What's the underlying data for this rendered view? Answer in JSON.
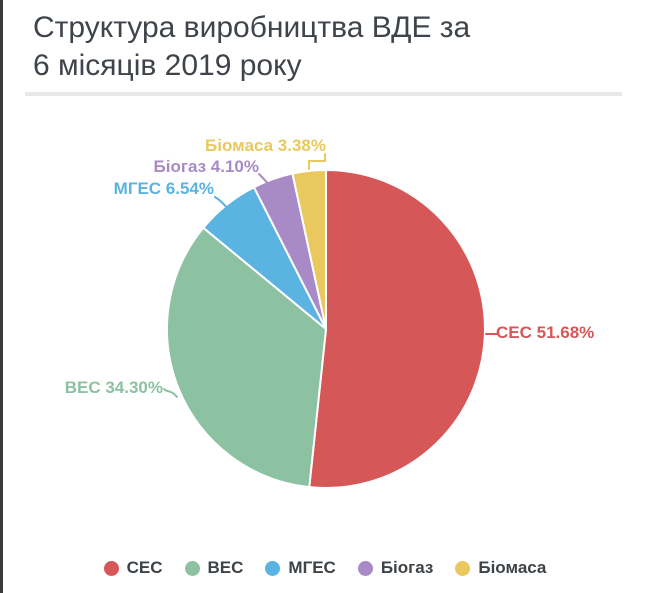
{
  "page": {
    "title": "Структура виробництва ВДЕ за 6 місяців 2019 року",
    "title_lines": [
      "Структура виробництва ВДЕ за",
      "6 місяців 2019 року"
    ]
  },
  "chart_data": {
    "type": "pie",
    "title": "Структура виробництва ВДЕ за 6 місяців 2019 року",
    "start_angle_deg": 0,
    "direction": "clockwise",
    "unit": "%",
    "legend_position": "bottom",
    "slices": [
      {
        "label": "СЕС",
        "value_pct": 51.68,
        "color": "#d55757",
        "callout": "СЕС 51.68%"
      },
      {
        "label": "ВЕС",
        "value_pct": 34.3,
        "color": "#8cc2a2",
        "callout": "ВЕС 34.30%"
      },
      {
        "label": "МГЕС",
        "value_pct": 6.54,
        "color": "#5bb3e2",
        "callout": "МГЕС 6.54%"
      },
      {
        "label": "Біогаз",
        "value_pct": 4.1,
        "color": "#a88bc6",
        "callout": "Біогаз 4.10%"
      },
      {
        "label": "Біомаса",
        "value_pct": 3.38,
        "color": "#e9c85e",
        "callout": "Біомаса 3.38%"
      }
    ],
    "legend": [
      "СЕС",
      "ВЕС",
      "МГЕС",
      "Біогаз",
      "Біомаса"
    ]
  }
}
